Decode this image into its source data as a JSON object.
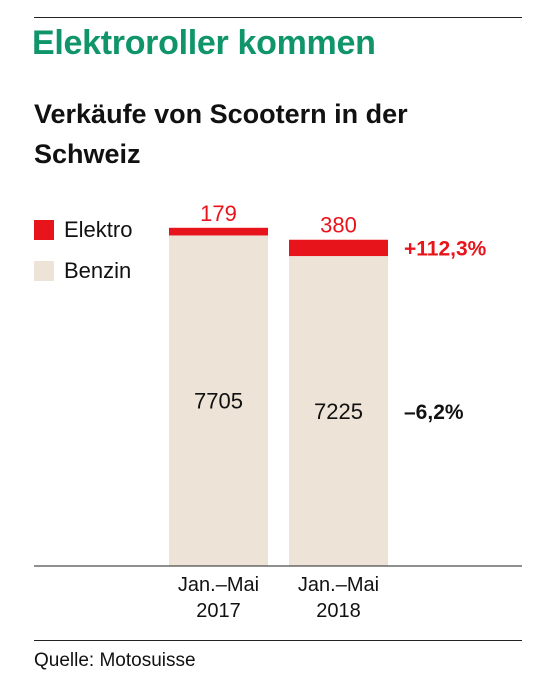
{
  "title": "Elektroroller kommen",
  "subtitle": "Verkäufe von Scootern in der Schweiz",
  "source": "Quelle: Motosuisse",
  "colors": {
    "title": "#10956a",
    "elektro": "#e8141b",
    "benzin": "#ede3d7",
    "increase": "#e8141b",
    "decrease": "#111111"
  },
  "chart_data": {
    "type": "bar",
    "stacked": true,
    "categories": [
      [
        "Jan.–Mai",
        "2017"
      ],
      [
        "Jan.–Mai",
        "2018"
      ]
    ],
    "series": [
      {
        "name": "Benzin",
        "values": [
          7705,
          7225
        ]
      },
      {
        "name": "Elektro",
        "values": [
          179,
          380
        ]
      }
    ],
    "legend": {
      "placement": "top-left",
      "order": [
        "Elektro",
        "Benzin"
      ]
    },
    "changes": [
      {
        "series": "Elektro",
        "label": "+112,3%"
      },
      {
        "series": "Benzin",
        "label": "–6,2%"
      }
    ],
    "ylim": [
      0,
      8000
    ],
    "grid": false
  }
}
